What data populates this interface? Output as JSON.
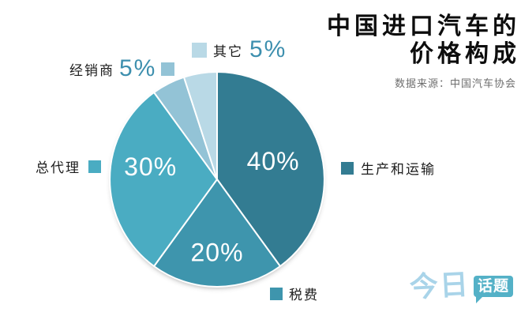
{
  "header": {
    "title_line1": "中国进口汽车的",
    "title_line2": "价格构成",
    "source": "数据来源：中国汽车协会"
  },
  "chart_data": {
    "type": "pie",
    "title": "中国进口汽车的价格构成",
    "start_angle_deg": 0,
    "direction": "clockwise",
    "legend_position": "around",
    "slices": [
      {
        "label": "生产和运输",
        "value": 40,
        "percent_label": "40%",
        "color": "#337c92",
        "label_r": 0.55
      },
      {
        "label": "税费",
        "value": 20,
        "percent_label": "20%",
        "color": "#3e95ad",
        "label_r": 0.68
      },
      {
        "label": "总代理",
        "value": 30,
        "percent_label": "30%",
        "color": "#4aacc2",
        "label_r": 0.62,
        "label_dy": -16
      },
      {
        "label": "经销商",
        "value": 5,
        "percent_label": "5%",
        "color": "#93c3d6"
      },
      {
        "label": "其它",
        "value": 5,
        "percent_label": "5%",
        "color": "#b9d9e6"
      }
    ]
  },
  "logo": {
    "part1": "今日",
    "part2": "话题"
  },
  "colors": {
    "background": "#ffffff",
    "title_text": "#0d0d0d",
    "source_text": "#6e6e6e",
    "percent_accent": "#3d8fae",
    "pie_percent_text": "#ffffff",
    "logo_script": "#a9d4e9",
    "logo_badge": "#54b1c7"
  }
}
